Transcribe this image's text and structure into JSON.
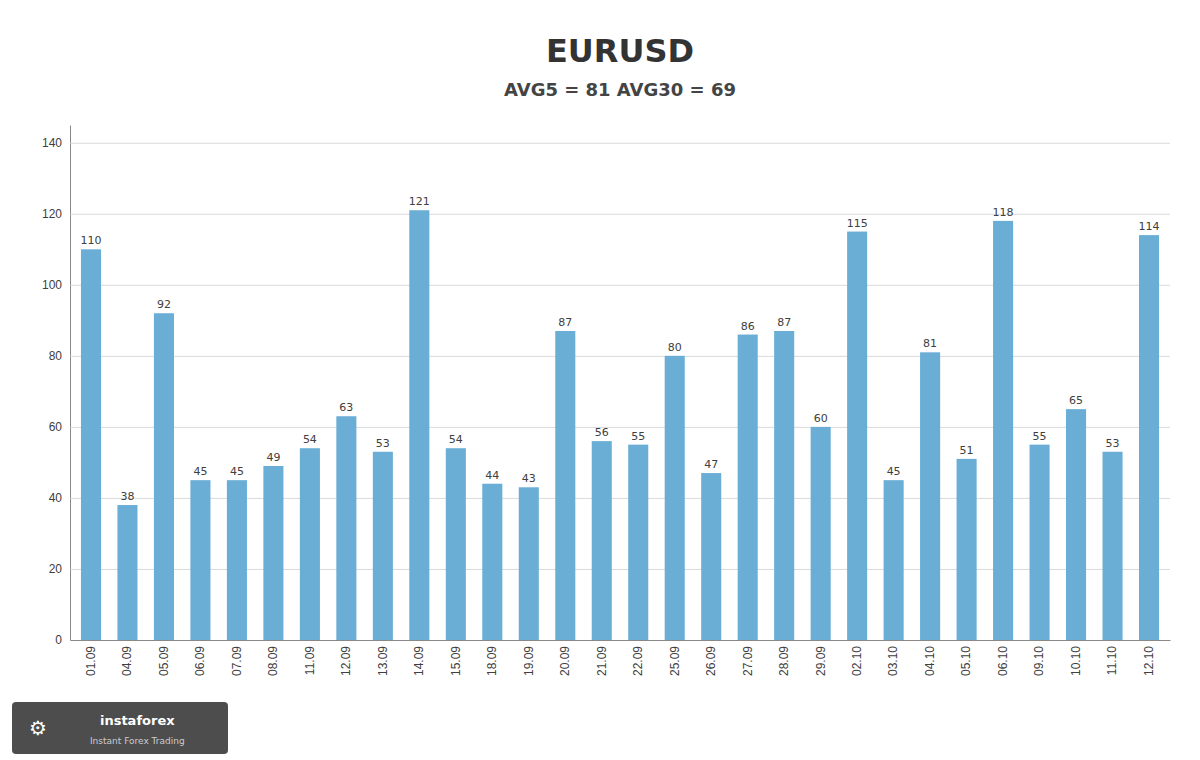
{
  "chart_data": {
    "type": "bar",
    "title": "EURUSD",
    "subtitle": "AVG5 = 81 AVG30 = 69",
    "categories": [
      "01.09",
      "04.09",
      "05.09",
      "06.09",
      "07.09",
      "08.09",
      "11.09",
      "12.09",
      "13.09",
      "14.09",
      "15.09",
      "18.09",
      "19.09",
      "20.09",
      "21.09",
      "22.09",
      "25.09",
      "26.09",
      "27.09",
      "28.09",
      "29.09",
      "02.10",
      "03.10",
      "04.10",
      "05.10",
      "06.10",
      "09.10",
      "10.10",
      "11.10",
      "12.10"
    ],
    "values": [
      110,
      38,
      92,
      45,
      45,
      49,
      54,
      63,
      53,
      121,
      54,
      44,
      43,
      87,
      56,
      55,
      80,
      47,
      86,
      87,
      60,
      115,
      45,
      81,
      51,
      118,
      55,
      65,
      53,
      114
    ],
    "color": "#6aaed6",
    "ylim": [
      0,
      145
    ],
    "yticks": [
      0,
      20,
      40,
      60,
      80,
      100,
      120,
      140
    ],
    "grid": true,
    "data_labels": true,
    "annotations": [
      "⚙",
      "instaforex",
      "Instant Forex Trading"
    ]
  }
}
